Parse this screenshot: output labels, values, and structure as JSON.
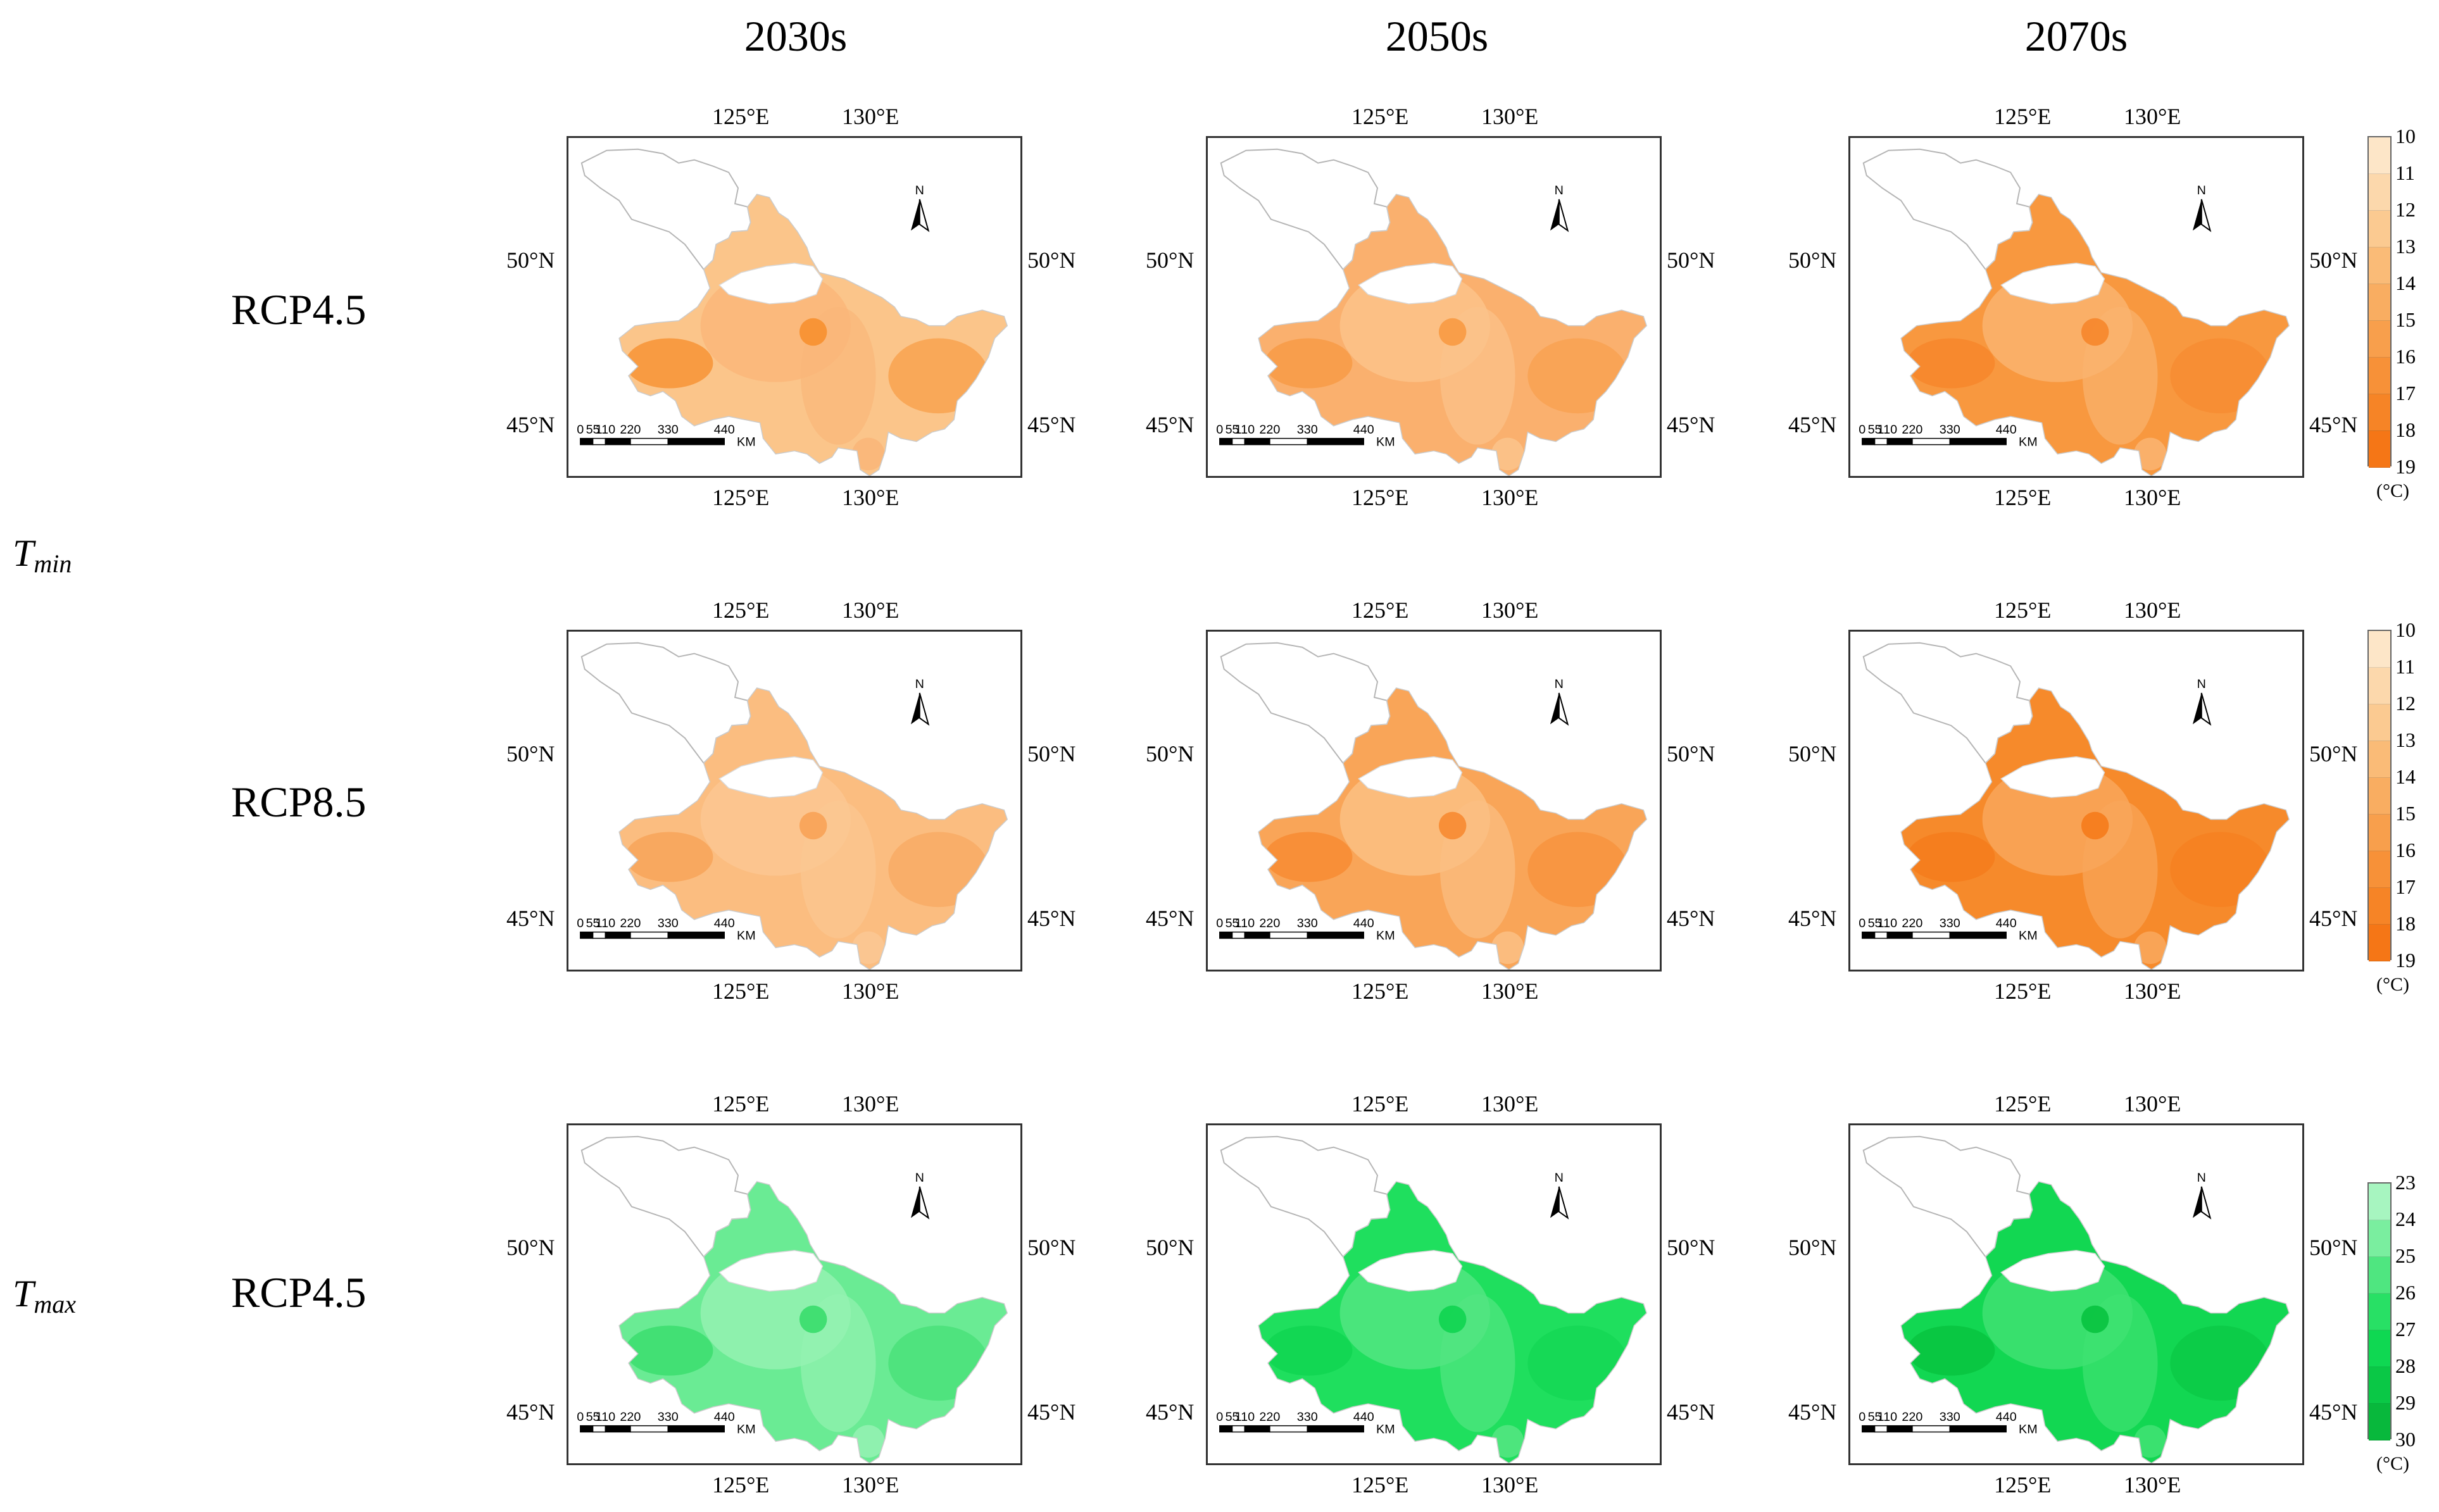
{
  "column_headers": [
    "2030s",
    "2050s",
    "2070s"
  ],
  "row_labels": {
    "row1": "RCP4.5",
    "row2": "RCP8.5",
    "row3": "RCP4.5"
  },
  "variable_labels": {
    "tmin": {
      "base": "T",
      "sub": "min"
    },
    "tmax": {
      "base": "T",
      "sub": "max"
    }
  },
  "map_ticks": {
    "lon_left": "125°E",
    "lon_right": "130°E",
    "lat_top": "50°N",
    "lat_bottom": "45°N"
  },
  "north_arrow_label": "N",
  "scale_bar": {
    "labels": [
      "0",
      "55",
      "110",
      "220",
      "330",
      "440"
    ],
    "unit": "KM"
  },
  "legends": {
    "tmin": {
      "values": [
        "10",
        "11",
        "12",
        "13",
        "14",
        "15",
        "16",
        "17",
        "18",
        "19"
      ],
      "unit": "(°C)",
      "colors": [
        "#fde6c8",
        "#fcd8ac",
        "#fbca91",
        "#fabb77",
        "#f9ad61",
        "#f89f4c",
        "#f79138",
        "#f68426",
        "#f57616"
      ]
    },
    "tmax": {
      "values": [
        "23",
        "24",
        "25",
        "26",
        "27",
        "28",
        "29",
        "30"
      ],
      "unit": "(°C)",
      "colors": [
        "#a7f5c0",
        "#7aee9f",
        "#4fe680",
        "#28e065",
        "#0fd852",
        "#0ac846",
        "#08b83c"
      ]
    }
  },
  "panel_fills": {
    "r1c1": {
      "base": "#fbc58a",
      "alt": "#fab679",
      "hot": "#f7902f"
    },
    "r1c2": {
      "base": "#fab06e",
      "alt": "#fbc38a",
      "hot": "#f89a43"
    },
    "r1c3": {
      "base": "#f8983f",
      "alt": "#fab36f",
      "hot": "#f6862b"
    },
    "r2c1": {
      "base": "#fbbd80",
      "alt": "#fbc792",
      "hot": "#f8a256"
    },
    "r2c2": {
      "base": "#f9a558",
      "alt": "#fbbf83",
      "hot": "#f78a31"
    },
    "r2c3": {
      "base": "#f68a2b",
      "alt": "#f9a65b",
      "hot": "#f57b1b"
    },
    "r3c1": {
      "base": "#6aeb94",
      "alt": "#94f2b1",
      "hot": "#38dd6b"
    },
    "r3c2": {
      "base": "#1fdf5e",
      "alt": "#52e681",
      "hot": "#0fd450"
    },
    "r3c3": {
      "base": "#12d752",
      "alt": "#3fe272",
      "hot": "#08c33f"
    }
  }
}
